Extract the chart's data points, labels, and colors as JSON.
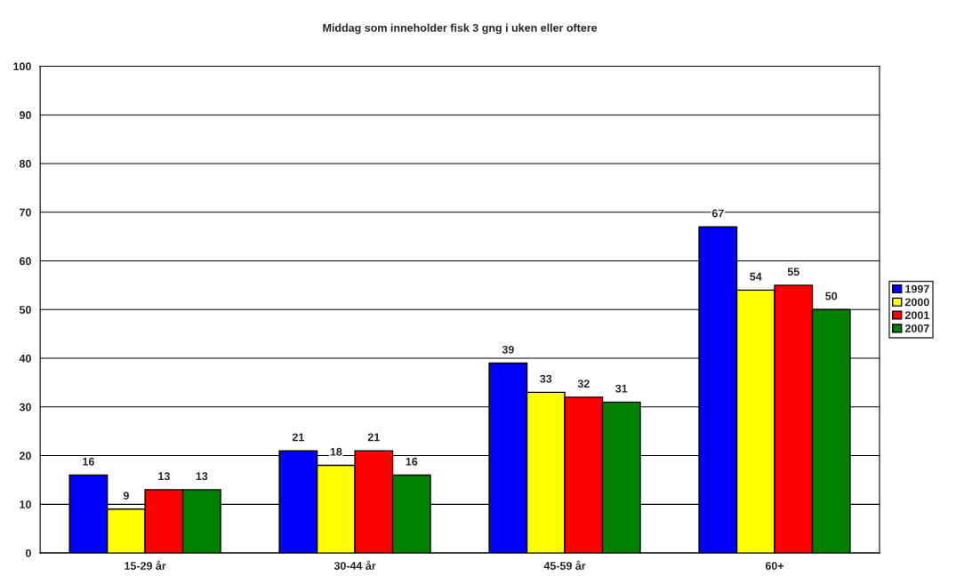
{
  "chart_data": {
    "type": "bar",
    "title": "Middag som inneholder fisk 3 gng i uken eller oftere",
    "categories": [
      "15-29 år",
      "30-44 år",
      "45-59 år",
      "60+"
    ],
    "series": [
      {
        "name": "1997",
        "color": "#0000ff",
        "values": [
          16,
          21,
          39,
          67
        ]
      },
      {
        "name": "2000",
        "color": "#ffff00",
        "values": [
          9,
          18,
          33,
          54
        ]
      },
      {
        "name": "2001",
        "color": "#ff0000",
        "values": [
          13,
          21,
          32,
          55
        ]
      },
      {
        "name": "2007",
        "color": "#008000",
        "values": [
          13,
          16,
          31,
          50
        ]
      }
    ],
    "ylim": [
      0,
      100
    ],
    "yticks": [
      0,
      10,
      20,
      30,
      40,
      50,
      60,
      70,
      80,
      90,
      100
    ],
    "grid": "y",
    "legend": "right",
    "data_labels": true
  }
}
